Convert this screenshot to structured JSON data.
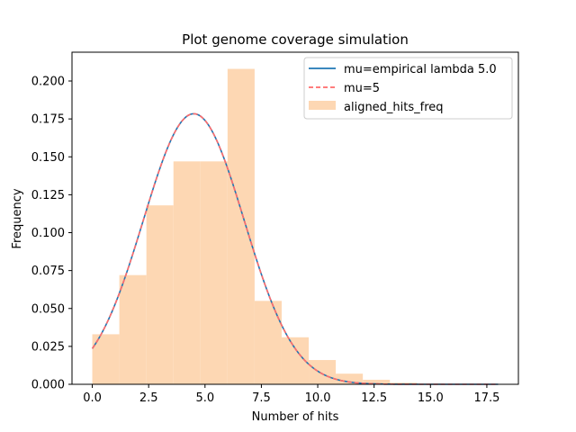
{
  "chart_data": {
    "type": "bar",
    "title": "Plot genome coverage simulation",
    "xlabel": "Number of hits",
    "ylabel": "Frequency",
    "xlim": [
      -0.9,
      18.9
    ],
    "ylim": [
      0,
      0.219
    ],
    "x_ticks": [
      0.0,
      2.5,
      5.0,
      7.5,
      10.0,
      12.5,
      15.0,
      17.5
    ],
    "x_tick_labels": [
      "0.0",
      "2.5",
      "5.0",
      "7.5",
      "10.0",
      "12.5",
      "15.0",
      "17.5"
    ],
    "y_ticks": [
      0.0,
      0.025,
      0.05,
      0.075,
      0.1,
      0.125,
      0.15,
      0.175,
      0.2
    ],
    "y_tick_labels": [
      "0.000",
      "0.025",
      "0.050",
      "0.075",
      "0.100",
      "0.125",
      "0.150",
      "0.175",
      "0.200"
    ],
    "histogram": {
      "name": "aligned_hits_freq",
      "color": "#fdd7b3",
      "bin_edges": [
        0.0,
        1.2,
        2.4,
        3.6,
        4.8,
        6.0,
        7.2,
        8.4,
        9.6,
        10.8,
        12.0,
        13.2,
        14.4,
        15.6,
        16.8,
        18.0
      ],
      "values": [
        0.033,
        0.072,
        0.118,
        0.147,
        0.147,
        0.208,
        0.055,
        0.031,
        0.016,
        0.007,
        0.003,
        0.001,
        0.0005,
        0.0002,
        0.0001
      ]
    },
    "series": [
      {
        "name": "mu=empirical lambda 5.0",
        "color": "#1f77b4",
        "style": "solid",
        "mu": 5.0,
        "x_range": [
          0,
          18
        ]
      },
      {
        "name": "mu=5",
        "color": "#ff6b6b",
        "style": "dashed",
        "mu": 5,
        "x_range": [
          0,
          18
        ]
      }
    ],
    "legend_position": "top-right"
  }
}
